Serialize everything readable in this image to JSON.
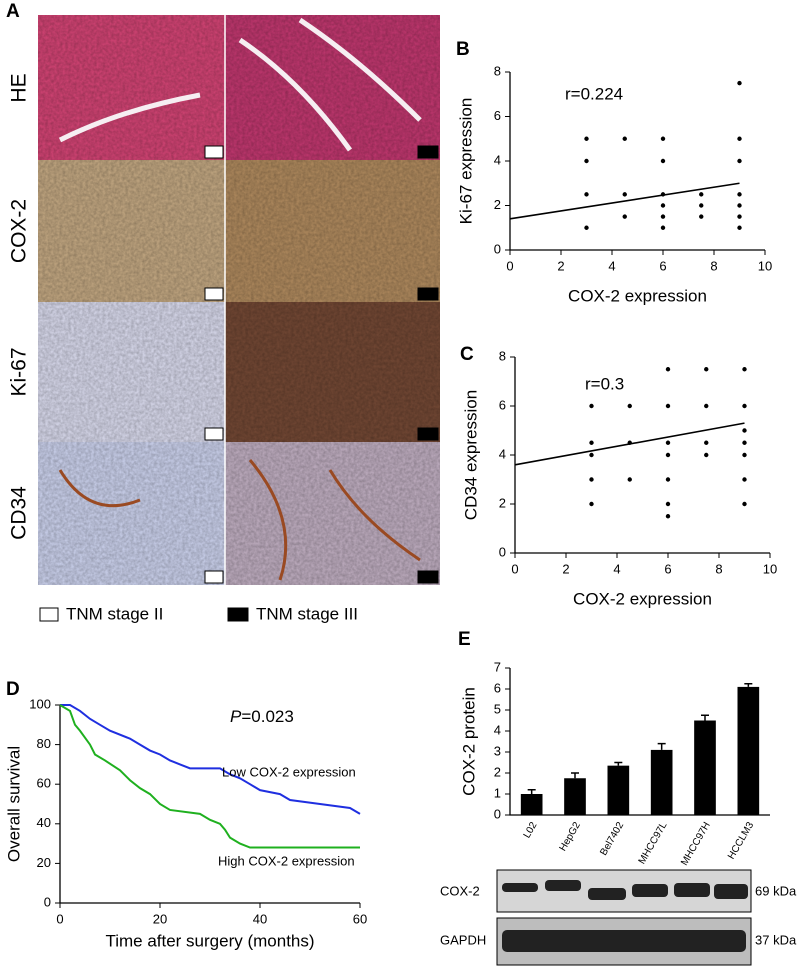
{
  "figure": {
    "panel_labels": [
      "A",
      "B",
      "C",
      "D",
      "E"
    ],
    "row_labels": [
      "HE",
      "COX-2",
      "Ki-67",
      "CD34"
    ],
    "legend": [
      "TNM stage II",
      "TNM stage III"
    ],
    "blot_bands": [
      "COX-2",
      "GAPDH"
    ],
    "blot_sizes": [
      "69 kDa",
      "37 kDa"
    ]
  },
  "chart_data": [
    {
      "type": "scatter",
      "annotation": "r=0.224",
      "x_label": "COX-2 expression",
      "y_label": "Ki-67 expression",
      "color": "#000000",
      "x": [
        3,
        3,
        3,
        3,
        4.5,
        4.5,
        4.5,
        6,
        6,
        6,
        6,
        6,
        6,
        7.5,
        7.5,
        7.5,
        9,
        9,
        9,
        9,
        9,
        9,
        9
      ],
      "y": [
        5,
        4,
        2.5,
        1,
        5,
        2.5,
        1.5,
        5,
        4,
        2.5,
        2,
        1.5,
        1,
        2.5,
        2,
        1.5,
        7.5,
        5,
        4,
        2.5,
        2,
        1.5,
        1
      ],
      "fit": {
        "x": [
          0,
          9
        ],
        "y": [
          1.4,
          3
        ]
      },
      "xlim": [
        0,
        10
      ],
      "ylim": [
        0,
        8
      ],
      "xticks": [
        0,
        2,
        4,
        6,
        8,
        10
      ],
      "yticks": [
        0,
        2,
        4,
        6,
        8
      ]
    },
    {
      "type": "scatter",
      "annotation": "r=0.3",
      "x_label": "COX-2 expression",
      "y_label": "CD34 expression",
      "color": "#000000",
      "x": [
        3,
        3,
        3,
        3,
        3,
        4.5,
        4.5,
        4.5,
        6,
        6,
        6,
        6,
        6,
        6,
        6,
        7.5,
        7.5,
        7.5,
        7.5,
        9,
        9,
        9,
        9,
        9,
        9,
        9
      ],
      "y": [
        6,
        4.5,
        4,
        3,
        2,
        6,
        4.5,
        3,
        7.5,
        6,
        4.5,
        4,
        3,
        2,
        1.5,
        7.5,
        6,
        4.5,
        4,
        7.5,
        6,
        5,
        4.5,
        4,
        3,
        2
      ],
      "fit": {
        "x": [
          0,
          9
        ],
        "y": [
          3.6,
          5.3
        ]
      },
      "xlim": [
        0,
        10
      ],
      "ylim": [
        0,
        8
      ],
      "xticks": [
        0,
        2,
        4,
        6,
        8,
        10
      ],
      "yticks": [
        0,
        2,
        4,
        6,
        8
      ]
    },
    {
      "type": "line",
      "annotation_italic": "P",
      "annotation": "=0.023",
      "x_label": "Time after surgery (months)",
      "y_label": "Overall survival",
      "series": [
        {
          "name": "Low COX-2 expression",
          "color": "#1f2fe0",
          "x": [
            0,
            2,
            4,
            6,
            8,
            10,
            14,
            16,
            18,
            20,
            22,
            24,
            26,
            32,
            34,
            36,
            38,
            40,
            44,
            46,
            52,
            58,
            60
          ],
          "values": [
            100,
            100,
            97,
            93,
            90,
            87,
            83,
            80,
            77,
            75,
            72,
            70,
            68,
            68,
            65,
            63,
            60,
            57,
            55,
            52,
            50,
            48,
            45
          ]
        },
        {
          "name": "High COX-2 expression",
          "color": "#1fb01f",
          "x": [
            0,
            2,
            3,
            4,
            6,
            7,
            9,
            12,
            14,
            16,
            18,
            20,
            22,
            28,
            30,
            32,
            33,
            34,
            36,
            38,
            60
          ],
          "values": [
            100,
            97,
            90,
            87,
            80,
            75,
            72,
            67,
            62,
            58,
            55,
            50,
            47,
            45,
            42,
            40,
            37,
            33,
            30,
            28,
            28
          ]
        }
      ],
      "xlim": [
        0,
        60
      ],
      "ylim": [
        0,
        100
      ],
      "xticks": [
        0,
        20,
        40,
        60
      ],
      "yticks": [
        0,
        20,
        40,
        60,
        80,
        100
      ]
    },
    {
      "type": "bar",
      "y_label": "COX-2 protein",
      "color": "#000000",
      "categories": [
        "L02",
        "HepG2",
        "Bel7402",
        "MHCC97L",
        "MHCC97H",
        "HCCLM3"
      ],
      "values": [
        1.0,
        1.75,
        2.35,
        3.1,
        4.5,
        6.1
      ],
      "errors": [
        0.2,
        0.25,
        0.15,
        0.3,
        0.25,
        0.15
      ],
      "ylim": [
        0,
        7
      ],
      "yticks": [
        0,
        1,
        2,
        3,
        4,
        5,
        6,
        7
      ]
    }
  ]
}
